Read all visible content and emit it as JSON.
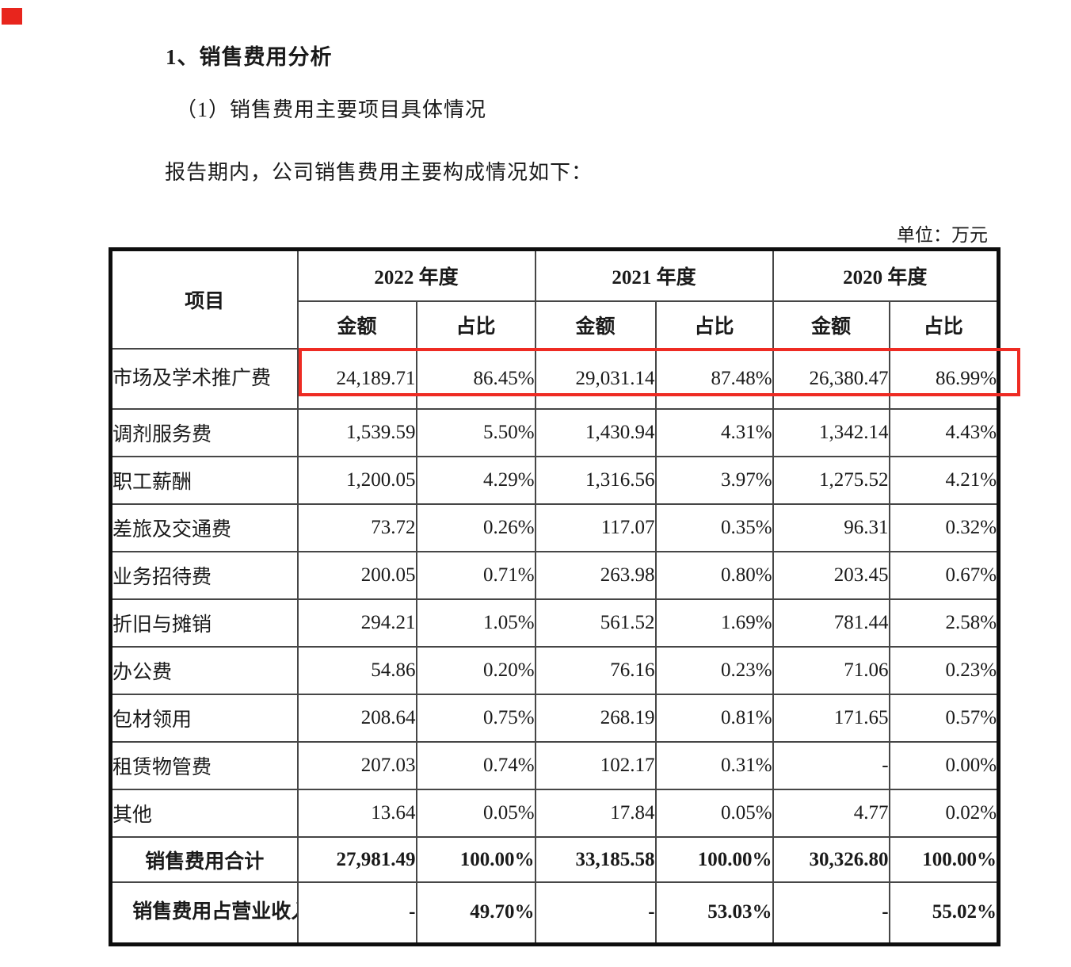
{
  "document": {
    "heading": "1、销售费用分析",
    "subheading": "（1）销售费用主要项目具体情况",
    "paragraph": "报告期内，公司销售费用主要构成情况如下：",
    "unit_label": "单位：万元"
  },
  "table": {
    "item_header": "项目",
    "years": [
      "2022 年度",
      "2021 年度",
      "2020 年度"
    ],
    "amount_label": "金额",
    "share_label": "占比",
    "rows": [
      {
        "label": "市场及学术推广费",
        "type": "first",
        "wrap": 8,
        "highlighted": true,
        "values": [
          "24,189.71",
          "86.45%",
          "29,031.14",
          "87.48%",
          "26,380.47",
          "86.99%"
        ]
      },
      {
        "label": "调剂服务费",
        "type": "data",
        "values": [
          "1,539.59",
          "5.50%",
          "1,430.94",
          "4.31%",
          "1,342.14",
          "4.43%"
        ]
      },
      {
        "label": "职工薪酬",
        "type": "data",
        "values": [
          "1,200.05",
          "4.29%",
          "1,316.56",
          "3.97%",
          "1,275.52",
          "4.21%"
        ]
      },
      {
        "label": "差旅及交通费",
        "type": "data",
        "values": [
          "73.72",
          "0.26%",
          "117.07",
          "0.35%",
          "96.31",
          "0.32%"
        ]
      },
      {
        "label": "业务招待费",
        "type": "data",
        "values": [
          "200.05",
          "0.71%",
          "263.98",
          "0.80%",
          "203.45",
          "0.67%"
        ]
      },
      {
        "label": "折旧与摊销",
        "type": "data",
        "values": [
          "294.21",
          "1.05%",
          "561.52",
          "1.69%",
          "781.44",
          "2.58%"
        ]
      },
      {
        "label": "办公费",
        "type": "data",
        "values": [
          "54.86",
          "0.20%",
          "76.16",
          "0.23%",
          "71.06",
          "0.23%"
        ]
      },
      {
        "label": "包材领用",
        "type": "data",
        "values": [
          "208.64",
          "0.75%",
          "268.19",
          "0.81%",
          "171.65",
          "0.57%"
        ]
      },
      {
        "label": "租赁物管费",
        "type": "data",
        "values": [
          "207.03",
          "0.74%",
          "102.17",
          "0.31%",
          "-",
          "0.00%"
        ]
      },
      {
        "label": "其他",
        "type": "data",
        "values": [
          "13.64",
          "0.05%",
          "17.84",
          "0.05%",
          "4.77",
          "0.02%"
        ]
      },
      {
        "label": "销售费用合计",
        "type": "total",
        "values": [
          "27,981.49",
          "100.00%",
          "33,185.58",
          "100.00%",
          "30,326.80",
          "100.00%"
        ]
      },
      {
        "label": "销售费用占营业收入的比例",
        "type": "ratio",
        "wrap": 7,
        "values": [
          "-",
          "49.70%",
          "-",
          "53.03%",
          "-",
          "55.02%"
        ]
      }
    ]
  },
  "annotations": {
    "highlight_color": "#ee2b23",
    "marker_color": "#e8251d"
  }
}
